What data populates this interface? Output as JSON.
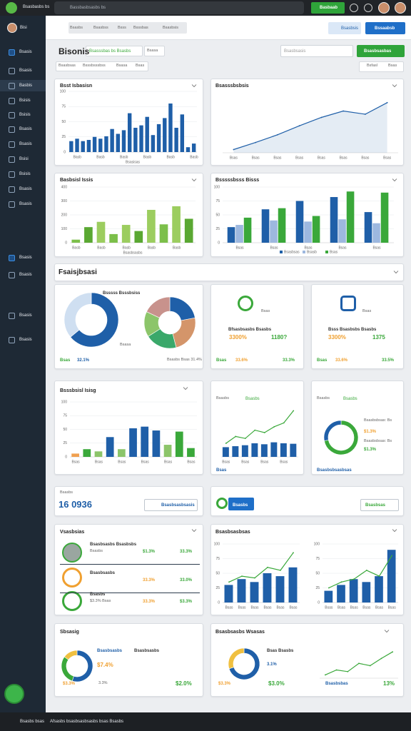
{
  "topbar": {
    "brand": "Bsasbasbs bs",
    "search": "Bassbasbsasbs bs",
    "button": "Basbaab"
  },
  "sidebar": {
    "user": "Bisi",
    "items": [
      "Bsasis",
      "Bsasis",
      "Basbis",
      "Bsisis",
      "Bsisis",
      "Bsasis",
      "Bsasis",
      "Bsisi",
      "Bsisis",
      "Bsasis",
      "Bsasis",
      "Bsasis",
      "Bsasis",
      "Bsasis",
      "Bsasis"
    ]
  },
  "nav": {
    "tabs": [
      "Bsasbs",
      "Bsasbss",
      "Bsss",
      "Bsssbas",
      "Bsasbsis"
    ],
    "link": "Bsasbsis",
    "button": "Bssaabsb"
  },
  "page": {
    "title": "Bisonis",
    "tabs": [
      "Bsasssbas bs Bsasbs",
      "Bsasa"
    ],
    "search": "Bsasbsasis",
    "button": "Bsasbsasbas",
    "filters": [
      "Bsasbsas",
      "Bsssbsssbss",
      "Bsasa",
      "Bsas"
    ],
    "options": [
      "Bsfasl",
      "Bsas"
    ]
  },
  "section": {
    "title": "Fsaisjbsasi"
  },
  "chart_data": [
    {
      "type": "bar",
      "title": "Bsst Isbasisn",
      "xlabel": "Bsasisas",
      "color": "#1f5fa8",
      "grid": true,
      "categories": [
        null,
        "Basb",
        null,
        null,
        null,
        "Basb",
        null,
        null,
        null,
        "Basb",
        null,
        null,
        null,
        "Basb",
        null,
        null,
        null,
        "Basb",
        null,
        null,
        null,
        "Basb"
      ],
      "values": [
        18,
        22,
        18,
        20,
        25,
        22,
        26,
        38,
        30,
        36,
        64,
        40,
        44,
        58,
        28,
        46,
        56,
        80,
        40,
        62,
        8,
        14
      ],
      "ylim": [
        0,
        100
      ],
      "yticks": [
        0,
        25,
        50,
        75,
        100
      ]
    },
    {
      "type": "line",
      "title": "Bsasssbsbsis",
      "color": "#1f5fa8",
      "area": true,
      "categories": [
        "Bsas",
        "Bsas",
        "Bsas",
        "Bsas",
        "Bsas",
        "Bsas",
        "Bsas",
        "Bsas"
      ],
      "values": [
        5,
        16,
        28,
        42,
        55,
        65,
        60,
        78
      ],
      "ylim": [
        0,
        100
      ]
    },
    {
      "type": "bar",
      "title": "Basbsisl Issis",
      "xlabel": "Bsasbsasbs",
      "grid": true,
      "categories": [
        "Basb",
        null,
        "Basb",
        null,
        "Basb",
        null,
        "Basb",
        null,
        "Basb",
        null
      ],
      "values": [
        22,
        112,
        150,
        62,
        128,
        84,
        236,
        132,
        262,
        172
      ],
      "colors": [
        "#7cbf4a",
        "#5aa832",
        "#9ccd5f",
        "#7cbf4a",
        "#9ccd5f",
        "#5aa832",
        "#9ccd5f",
        "#7cbf4a",
        "#9ccd5f",
        "#5aa832"
      ],
      "ylim": [
        0,
        400
      ],
      "yticks": [
        0,
        100,
        200,
        300,
        400
      ]
    },
    {
      "type": "bar",
      "title": "Bsssssbsss Bisss",
      "grid": true,
      "legend": "bottom",
      "categories": [
        "Bsas",
        "Bsas",
        "Bsas",
        "Bsas",
        "Bsas"
      ],
      "series": [
        {
          "name": "Bsasbsas",
          "color": "#1f5fa8",
          "values": [
            28,
            60,
            75,
            82,
            55
          ]
        },
        {
          "name": "Bsasb",
          "color": "#9db8df",
          "values": [
            32,
            40,
            38,
            42,
            35
          ]
        },
        {
          "name": "Bsas",
          "color": "#3aa83a",
          "values": [
            45,
            62,
            48,
            92,
            90
          ]
        }
      ],
      "ylim": [
        0,
        100
      ],
      "yticks": [
        0,
        25,
        50,
        75,
        100
      ]
    },
    {
      "type": "pie",
      "title": "Bsssss Bsssbsiss",
      "donut": true,
      "values": [
        64,
        36
      ],
      "colors": [
        "#1f5fa8",
        "#cfdff1"
      ]
    },
    {
      "type": "pie",
      "donut": true,
      "values": [
        22,
        24,
        20,
        16,
        18
      ],
      "colors": [
        "#1f5fa8",
        "#d4956a",
        "#3aa86a",
        "#8cc56a",
        "#c8928c"
      ]
    },
    {
      "type": "bar",
      "title": "Bsssbsisl Isisg",
      "grid": true,
      "categories": [
        "Bsas",
        null,
        "Bsas",
        null,
        "Bsas",
        null,
        "Bsas",
        null,
        "Bsas",
        null,
        "Bsas"
      ],
      "values": [
        6,
        14,
        10,
        36,
        14,
        52,
        55,
        48,
        22,
        46,
        16
      ],
      "colors": [
        "#f0a050",
        "#3aa83a",
        "#8cc56a",
        "#1f5fa8",
        "#8cc56a",
        "#1f5fa8",
        "#1f5fa8",
        "#1f5fa8",
        "#8cc56a",
        "#3aa83a",
        "#3aa83a"
      ],
      "ylim": [
        0,
        100
      ],
      "yticks": [
        0,
        25,
        50,
        75,
        100
      ]
    },
    {
      "type": "bar",
      "categories": [
        "Bsas",
        null,
        "Bsas",
        null,
        "Bsas",
        null,
        "Bsas",
        null
      ],
      "series": [
        {
          "color": "#1f5fa8",
          "values": [
            20,
            22,
            24,
            28,
            26,
            30,
            28,
            27
          ]
        },
        {
          "type": "line",
          "color": "#3aa83a",
          "values": [
            28,
            42,
            38,
            55,
            50,
            62,
            70,
            95
          ]
        }
      ],
      "ylim": [
        0,
        100
      ]
    },
    {
      "type": "pie",
      "donut": true,
      "values": [
        72,
        28
      ],
      "colors": [
        "#3aa83a",
        "#1f5fa8"
      ]
    },
    {
      "type": "bar",
      "grid": true,
      "categories": [
        "Bsas",
        "Bsas",
        "Bsas",
        "Bsas",
        "Bsas",
        "Bsas"
      ],
      "series": [
        {
          "color": "#1f5fa8",
          "values": [
            30,
            40,
            35,
            50,
            45,
            60
          ]
        },
        {
          "type": "line",
          "color": "#3aa83a",
          "values": [
            35,
            45,
            42,
            60,
            55,
            85
          ]
        }
      ],
      "ylim": [
        0,
        100
      ],
      "yticks": [
        0,
        25,
        50,
        75,
        100
      ]
    },
    {
      "type": "bar",
      "grid": true,
      "categories": [
        "Bsas",
        "Bsas",
        "Bsas",
        "Bsas",
        "Bsas",
        "Bsas"
      ],
      "series": [
        {
          "color": "#1f5fa8",
          "values": [
            20,
            30,
            40,
            35,
            45,
            90
          ]
        },
        {
          "type": "line",
          "color": "#3aa83a",
          "values": [
            25,
            35,
            40,
            55,
            45,
            80
          ]
        }
      ],
      "ylim": [
        0,
        100
      ],
      "yticks": [
        0,
        25,
        50,
        75,
        100
      ]
    },
    {
      "type": "pie",
      "donut": true,
      "values": [
        55,
        30,
        15
      ],
      "colors": [
        "#1f5fa8",
        "#3aa83a",
        "#f0c040"
      ]
    },
    {
      "type": "pie",
      "donut": true,
      "values": [
        70,
        30
      ],
      "colors": [
        "#1f5fa8",
        "#f0c040"
      ]
    },
    {
      "type": "line",
      "color": "#3aa83a",
      "categories": [
        null,
        null,
        null,
        null,
        null,
        null,
        null
      ],
      "values": [
        10,
        25,
        20,
        45,
        38,
        60,
        80
      ],
      "ylim": [
        0,
        100
      ]
    }
  ],
  "cards": {
    "pie": {
      "legend": [
        "Bsasa"
      ],
      "footer": [
        "Bsas",
        "32.1%",
        "Bsasbs Bsas 31.4%"
      ]
    },
    "stat_a": {
      "label": "Bsas",
      "title": "Bfsasbsasbs Bsasbs",
      "values": [
        "3300%",
        "1180?"
      ],
      "footer": [
        "Bsas",
        "33.6%",
        "33.3%"
      ]
    },
    "stat_b": {
      "label": "Bsas",
      "title": "Bsss Bsasbsbs Bsasbs",
      "values": [
        "3300%",
        "1375"
      ],
      "footer": [
        "Bsas",
        "33.6%",
        "33.5%"
      ]
    },
    "combo": {
      "tabs": [
        "Bsasbs",
        "Bsasbs"
      ],
      "footer": "Bsas"
    },
    "ring": {
      "tabs": [
        "Bsasbs",
        "Bsasbs"
      ],
      "legend": [
        "Bsasbsbsas: Bs",
        "$1.3%",
        "Bsasbsbsas: Bs",
        "$1.3%"
      ],
      "footer": "Bsasbsbsasbsas"
    },
    "count": {
      "label": "Bsasbs",
      "value": "16 0936",
      "button": "Bsasbsasbsasis"
    },
    "action": {
      "button": "Bsasbs",
      "link": "Bsasbsas"
    },
    "list": {
      "title": "Vsasbsias",
      "items": [
        {
          "title": "Bsasbsasbs Bsasbsbs",
          "sub": "Bsasbs",
          "value": "$1.3%",
          "right": "33.3%"
        },
        {
          "title": "Bsasbsasbs",
          "value": "33.3%",
          "right": "33.0%"
        },
        {
          "title": "Bsasbs",
          "sub": "$3.3% Bsas",
          "value": "33.3%",
          "right": "$3.3%"
        }
      ]
    },
    "trend": {
      "title": "Bsasbsasbsas"
    },
    "summary": {
      "title": "Sbsasig",
      "legend": [
        "Bsasbsasbs",
        "Bsasbsasbs"
      ],
      "value": "$7.4%",
      "footer": [
        "$3.3%",
        "3.3%",
        "$2.0%"
      ]
    },
    "weekly": {
      "title": "Bsasbsasbs Wsasas",
      "legend": [
        "Bsas Bsasbs",
        "3.1%"
      ],
      "footer": [
        "$3.3%",
        "$3.0%",
        "Bsasbsbas",
        "13%"
      ]
    }
  },
  "footer": {
    "left": "Bsasbs bsas",
    "text": "Afsasbs bsasbsasbsasbs bsas Bsasbs"
  }
}
